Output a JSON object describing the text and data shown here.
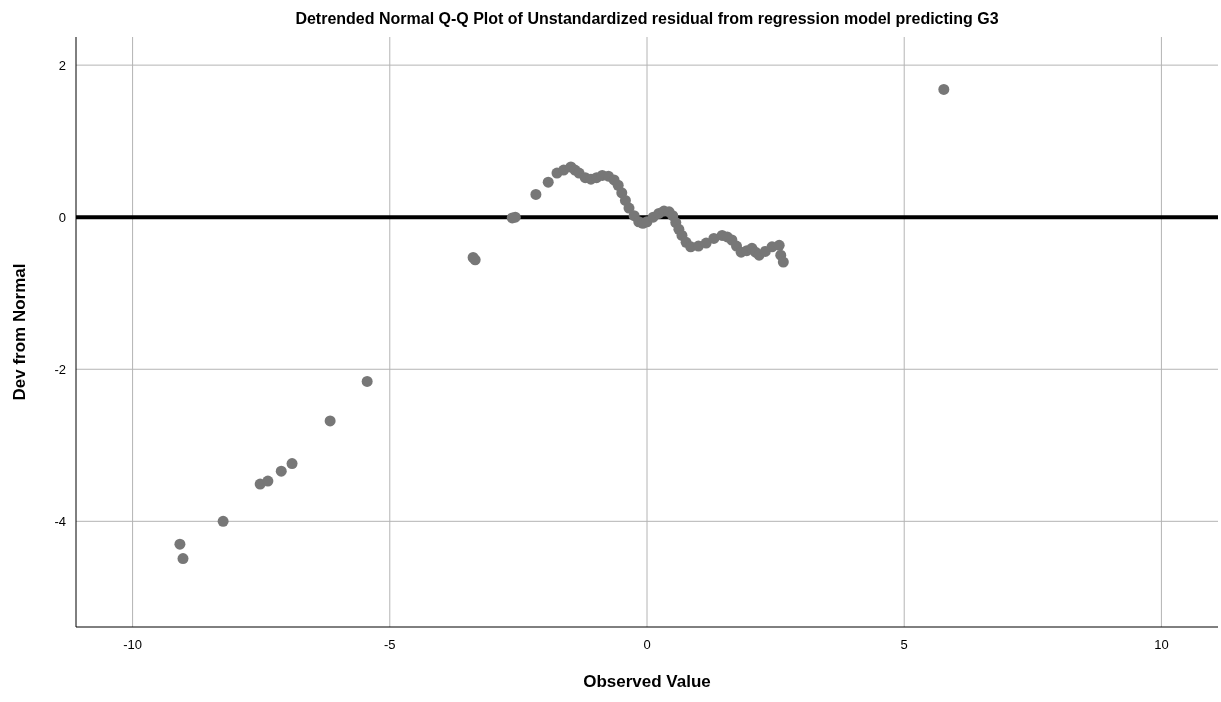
{
  "chart_data": {
    "type": "scatter",
    "title": "Detrended Normal Q-Q Plot of Unstandardized residual from regression model predicting G3",
    "xlabel": "Observed Value",
    "ylabel": "Dev from Normal",
    "x": [
      -9.08,
      -9.02,
      -8.24,
      -7.52,
      -7.37,
      -7.11,
      -6.9,
      -6.16,
      -5.44,
      -3.38,
      -3.34,
      -2.62,
      -2.56,
      -2.16,
      -1.92,
      -1.75,
      -1.62,
      -1.48,
      -1.4,
      -1.32,
      -1.2,
      -1.09,
      -0.98,
      -0.87,
      -0.75,
      -0.64,
      -0.56,
      -0.49,
      -0.42,
      -0.35,
      -0.25,
      -0.16,
      -0.08,
      0,
      0.12,
      0.23,
      0.33,
      0.43,
      0.5,
      0.56,
      0.62,
      0.68,
      0.76,
      0.85,
      1.0,
      1.15,
      1.3,
      1.46,
      1.56,
      1.65,
      1.74,
      1.83,
      1.94,
      2.04,
      2.11,
      2.18,
      2.3,
      2.43,
      2.57,
      2.6,
      2.65,
      5.77
    ],
    "values": [
      -4.3,
      -4.49,
      -4.0,
      -3.51,
      -3.47,
      -3.34,
      -3.24,
      -2.68,
      -2.16,
      -0.53,
      -0.56,
      -0.01,
      0.0,
      0.3,
      0.46,
      0.58,
      0.62,
      0.66,
      0.62,
      0.58,
      0.52,
      0.5,
      0.52,
      0.55,
      0.54,
      0.49,
      0.42,
      0.32,
      0.22,
      0.12,
      0.02,
      -0.06,
      -0.08,
      -0.06,
      0.0,
      0.05,
      0.08,
      0.07,
      0.02,
      -0.07,
      -0.16,
      -0.24,
      -0.33,
      -0.39,
      -0.38,
      -0.34,
      -0.28,
      -0.24,
      -0.26,
      -0.3,
      -0.38,
      -0.46,
      -0.44,
      -0.41,
      -0.46,
      -0.5,
      -0.45,
      -0.39,
      -0.37,
      -0.5,
      -0.59,
      1.68
    ],
    "color": "#777777",
    "marker": "circle",
    "xlim": [
      -11.1,
      11.1
    ],
    "ylim": [
      -5.39,
      2.37
    ],
    "xticks": [
      -10,
      -5,
      0,
      5,
      10
    ],
    "yticks": [
      -4,
      -2,
      0,
      2
    ],
    "grid": true,
    "ref_lines": [
      {
        "axis": "y",
        "value": 0,
        "color": "#000000"
      }
    ]
  }
}
